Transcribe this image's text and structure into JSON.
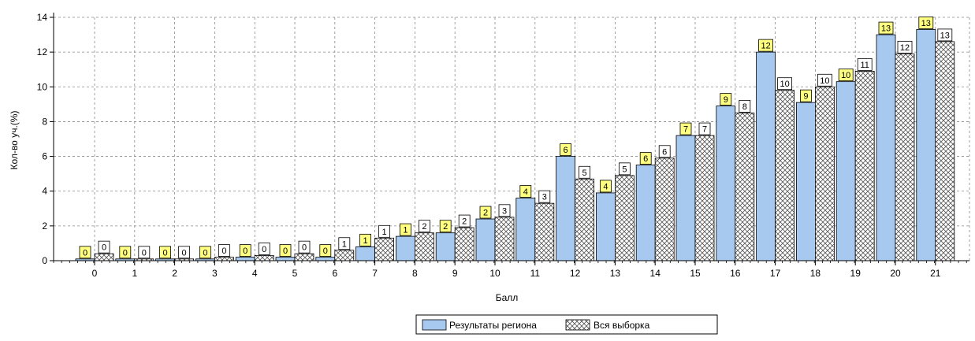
{
  "chart_data": {
    "type": "bar",
    "title": "",
    "xlabel": "Балл",
    "ylabel": "Кол-во уч.(%)",
    "ylim": [
      0,
      14
    ],
    "yticks": [
      0,
      2,
      4,
      6,
      8,
      10,
      12,
      14
    ],
    "grid": true,
    "legend_position": "bottom-center",
    "categories": [
      "0",
      "1",
      "2",
      "3",
      "4",
      "5",
      "6",
      "7",
      "8",
      "9",
      "10",
      "11",
      "12",
      "13",
      "14",
      "15",
      "16",
      "17",
      "18",
      "19",
      "20",
      "21"
    ],
    "series": [
      {
        "name": "Результаты региона",
        "color": "#a7c8ef",
        "pattern": "solid",
        "label_bg": "#ffff80",
        "values": [
          0.1,
          0.1,
          0.1,
          0.1,
          0.2,
          0.2,
          0.2,
          0.8,
          1.4,
          1.6,
          2.4,
          3.6,
          6.0,
          3.9,
          5.5,
          7.2,
          8.9,
          12.0,
          9.1,
          10.3,
          13.0,
          13.3
        ],
        "labels": [
          "0",
          "0",
          "0",
          "0",
          "0",
          "0",
          "0",
          "1",
          "1",
          "2",
          "2",
          "4",
          "6",
          "4",
          "6",
          "7",
          "9",
          "12",
          "9",
          "10",
          "13",
          "13"
        ]
      },
      {
        "name": "Вся выборка",
        "color": "#ffffff",
        "pattern": "crosshatch",
        "label_bg": "#ffffff",
        "values": [
          0.4,
          0.1,
          0.1,
          0.2,
          0.3,
          0.4,
          0.6,
          1.3,
          1.6,
          1.9,
          2.5,
          3.3,
          4.7,
          4.9,
          5.9,
          7.2,
          8.5,
          9.8,
          10.0,
          10.9,
          11.9,
          12.6
        ],
        "labels": [
          "0",
          "0",
          "0",
          "0",
          "0",
          "0",
          "1",
          "1",
          "2",
          "2",
          "3",
          "3",
          "5",
          "5",
          "6",
          "7",
          "8",
          "10",
          "10",
          "11",
          "12",
          "13"
        ]
      }
    ]
  }
}
